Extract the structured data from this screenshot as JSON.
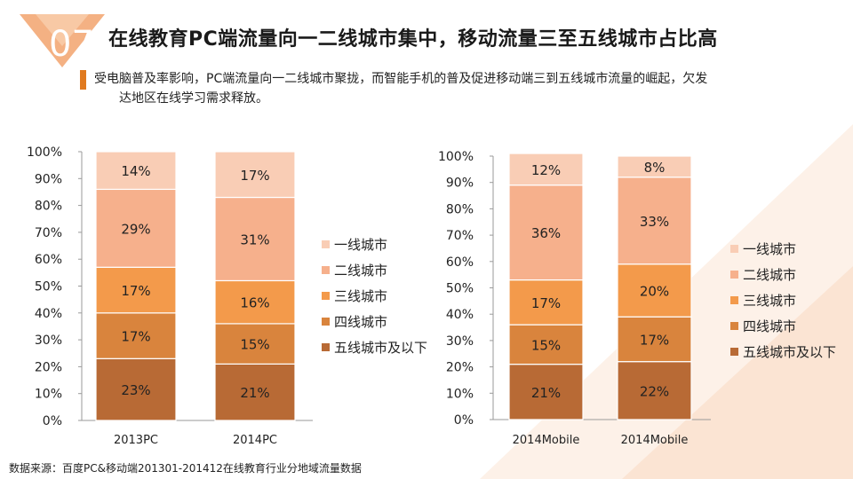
{
  "header": {
    "badge_number": "07",
    "title": "在线教育PC端流量向一二线城市集中，移动流量三至五线城市占比高"
  },
  "note": {
    "line1": "受电脑普及率影响，PC端流量向一二线城市聚拢，而智能手机的普及促进移动端三到五线城市流量的崛起，欠发",
    "line2": "达地区在线学习需求释放。"
  },
  "source": "数据来源：百度PC&移动端201301-201412在线教育行业分地域流量数据",
  "colors": {
    "accent": "#e07a1f",
    "series": [
      "#f9cdb5",
      "#f6b08c",
      "#f39a4b",
      "#d9843d",
      "#b86a35"
    ]
  },
  "chart_data": [
    {
      "type": "bar",
      "stacked": true,
      "categories": [
        "2013PC",
        "2014PC"
      ],
      "series": [
        {
          "name": "一线城市",
          "values": [
            14,
            17
          ]
        },
        {
          "name": "二线城市",
          "values": [
            29,
            31
          ]
        },
        {
          "name": "三线城市",
          "values": [
            17,
            16
          ]
        },
        {
          "name": "四线城市",
          "values": [
            17,
            15
          ]
        },
        {
          "name": "五线城市及以下",
          "values": [
            23,
            21
          ]
        }
      ],
      "ylim": [
        0,
        100
      ],
      "yticks": [
        "0%",
        "10%",
        "20%",
        "30%",
        "40%",
        "50%",
        "60%",
        "70%",
        "80%",
        "90%",
        "100%"
      ],
      "legend": "right",
      "grid": false
    },
    {
      "type": "bar",
      "stacked": true,
      "categories": [
        "2014Mobile",
        "2014Mobile"
      ],
      "series": [
        {
          "name": "一线城市",
          "values": [
            12,
            8
          ]
        },
        {
          "name": "二线城市",
          "values": [
            36,
            33
          ]
        },
        {
          "name": "三线城市",
          "values": [
            17,
            20
          ]
        },
        {
          "name": "四线城市",
          "values": [
            15,
            17
          ]
        },
        {
          "name": "五线城市及以下",
          "values": [
            21,
            22
          ]
        }
      ],
      "ylim": [
        0,
        100
      ],
      "yticks": [
        "0%",
        "10%",
        "20%",
        "30%",
        "40%",
        "50%",
        "60%",
        "70%",
        "80%",
        "90%",
        "100%"
      ],
      "legend": "right",
      "grid": false
    }
  ]
}
